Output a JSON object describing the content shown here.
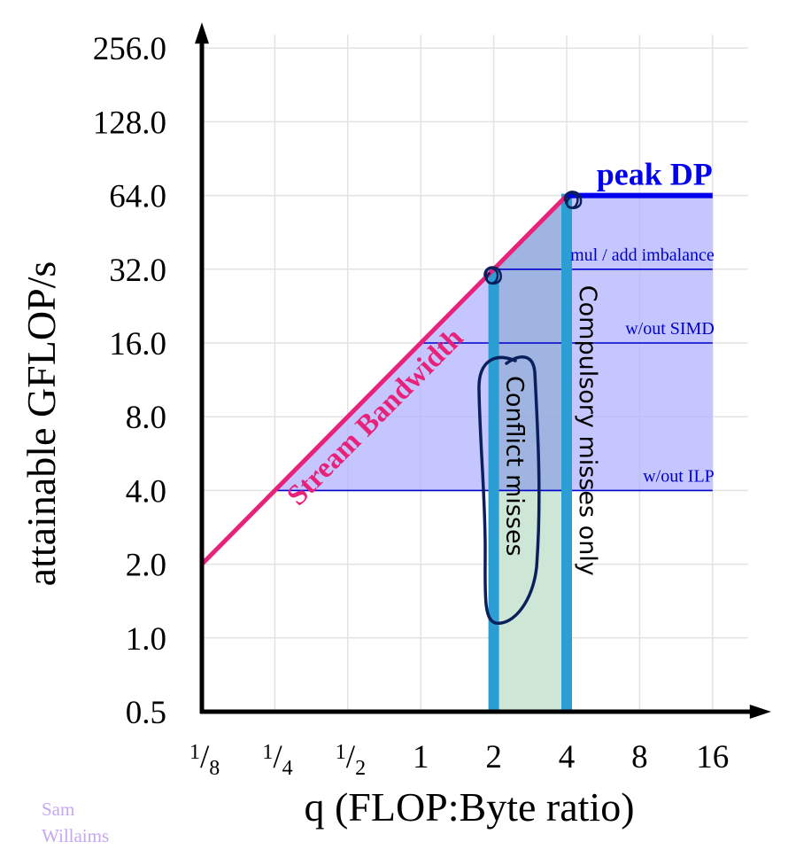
{
  "chart_data": {
    "type": "line",
    "title": "",
    "xlabel": "q (FLOP:Byte ratio)",
    "ylabel": "attainable GFLOP/s",
    "x_scale": "log2",
    "y_scale": "log2",
    "xlim": [
      0.125,
      16
    ],
    "ylim": [
      0.5,
      256
    ],
    "x_ticks": [
      {
        "value": 0.125,
        "num": "1",
        "den": "8"
      },
      {
        "value": 0.25,
        "num": "1",
        "den": "4"
      },
      {
        "value": 0.5,
        "num": "1",
        "den": "2"
      },
      {
        "value": 1,
        "label": "1"
      },
      {
        "value": 2,
        "label": "2"
      },
      {
        "value": 4,
        "label": "4"
      },
      {
        "value": 8,
        "label": "8"
      },
      {
        "value": 16,
        "label": "16"
      }
    ],
    "y_ticks": [
      {
        "value": 0.5,
        "label": "0.5"
      },
      {
        "value": 1,
        "label": "1.0"
      },
      {
        "value": 2,
        "label": "2.0"
      },
      {
        "value": 4,
        "label": "4.0"
      },
      {
        "value": 8,
        "label": "8.0"
      },
      {
        "value": 16,
        "label": "16.0"
      },
      {
        "value": 32,
        "label": "32.0"
      },
      {
        "value": 64,
        "label": "64.0"
      },
      {
        "value": 128,
        "label": "128.0"
      },
      {
        "value": 256,
        "label": "256.0"
      }
    ],
    "grid": true,
    "bandwidth_roof": {
      "label": "Stream Bandwidth",
      "x": [
        0.125,
        4
      ],
      "y": [
        2,
        64
      ],
      "color": "#e8227a"
    },
    "peak_roof": {
      "label": "peak DP",
      "y": 64,
      "x": [
        4,
        16
      ],
      "color": "#0000ee"
    },
    "ceilings": [
      {
        "label": "mul / add imbalance",
        "y": 32,
        "x_start": 2
      },
      {
        "label": "w/out SIMD",
        "y": 16,
        "x_start": 1
      },
      {
        "label": "w/out ILP",
        "y": 4,
        "x_start": 0.25
      }
    ],
    "ceiling_color": "#0000cc",
    "region_fill": "#b3b3ff",
    "green_fill": "#cde6d6",
    "intensity_walls": [
      {
        "label": "Conflict misses",
        "x": 2,
        "y_top": 32
      },
      {
        "label": "Compulsory misses only",
        "x": 4,
        "y_top": 64
      }
    ],
    "wall_color": "#2b9fd4",
    "annotation_color": "#0a1f5c"
  },
  "credit": {
    "line1": "Sam",
    "line2": "Willaims"
  }
}
